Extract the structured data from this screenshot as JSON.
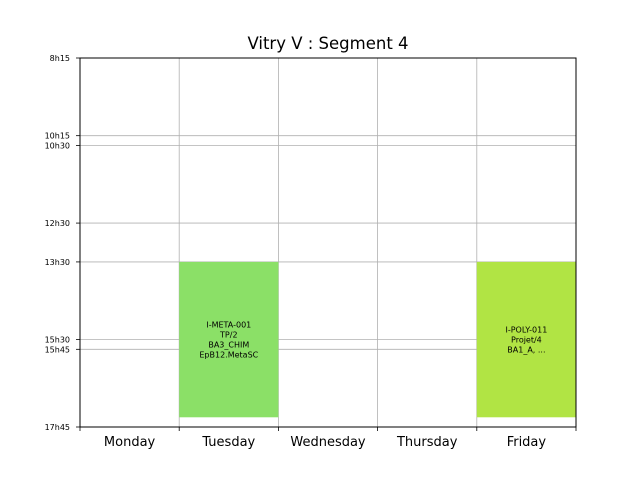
{
  "chart_data": {
    "type": "bar",
    "title": "Vitry V : Segment 4",
    "xlabel": "",
    "ylabel": "",
    "days": [
      "Monday",
      "Tuesday",
      "Wednesday",
      "Thursday",
      "Friday"
    ],
    "yticks": [
      "8h15",
      "10h15",
      "10h30",
      "12h30",
      "13h30",
      "15h30",
      "15h45",
      "17h45"
    ],
    "ytick_minutes": [
      495,
      615,
      630,
      750,
      810,
      930,
      945,
      1065
    ],
    "ylim_minutes": [
      495,
      1065
    ],
    "y_inverted": true,
    "grid": true,
    "events": [
      {
        "day": "Tuesday",
        "start_minutes": 810,
        "end_minutes": 1050,
        "color": "#8be067",
        "lines": [
          "I-META-001",
          "TP/2",
          "BA3_CHIM",
          "EpB12.MetaSC"
        ]
      },
      {
        "day": "Friday",
        "start_minutes": 810,
        "end_minutes": 1050,
        "color": "#b1e444",
        "lines": [
          "I-POLY-011",
          "Projet/4",
          "BA1_A, ..."
        ]
      }
    ]
  }
}
